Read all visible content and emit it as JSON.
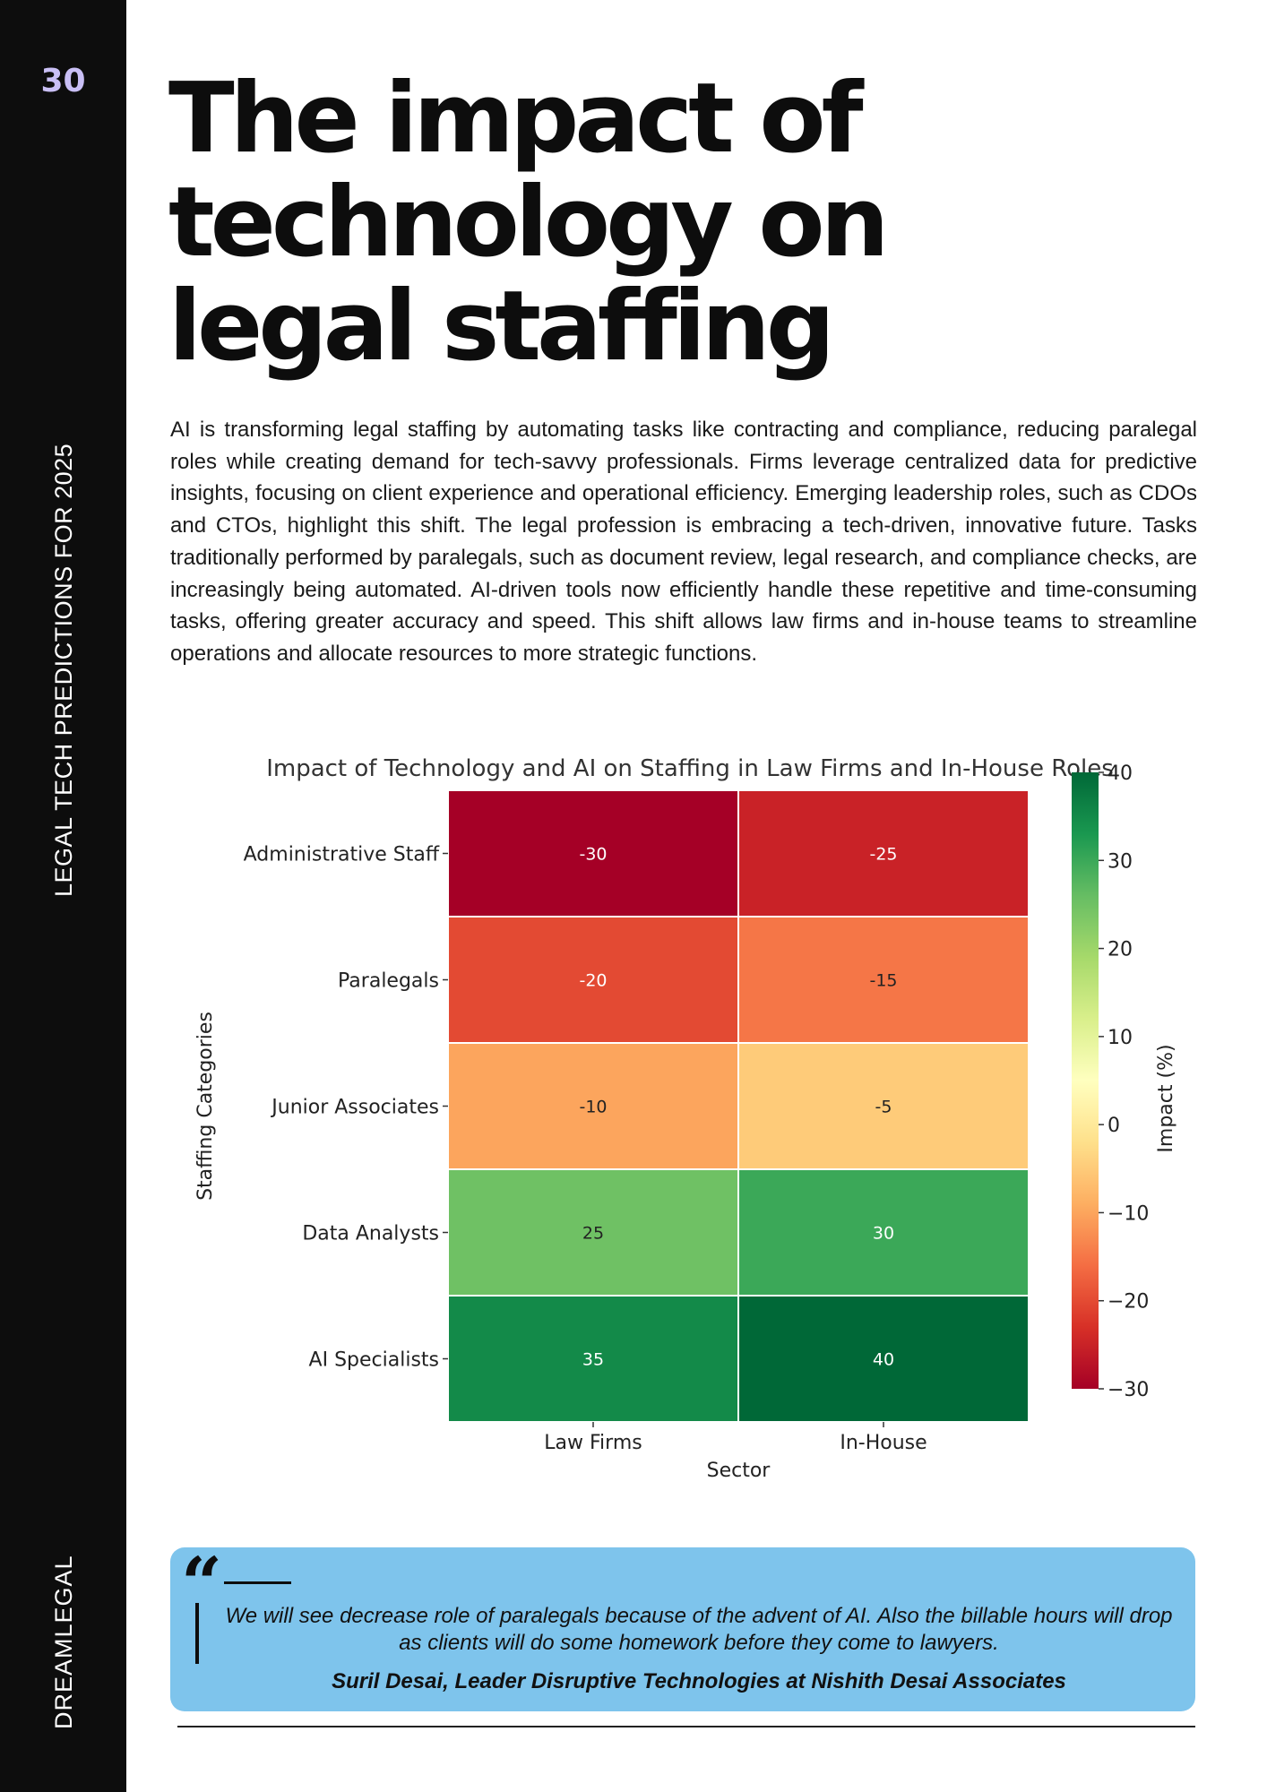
{
  "sidebar": {
    "page_number": "30",
    "publication": "LEGAL TECH PREDICTIONS FOR 2025",
    "brand": "DREAMLEGAL"
  },
  "title_lines": [
    "The impact of",
    "technology on",
    "legal staffing"
  ],
  "body_text": "AI is transforming legal staffing by automating tasks like contracting and compliance, reducing paralegal roles while creating demand for tech-savvy professionals. Firms leverage centralized data for predictive insights, focusing on client experience and operational efficiency. Emerging leadership roles, such as CDOs and CTOs, highlight this shift. The legal profession is embracing a tech-driven, innovative future. Tasks traditionally performed by paralegals, such as document review, legal research, and compliance checks, are increasingly being automated. AI-driven tools now efficiently handle these repetitive and time-consuming tasks, offering greater accuracy and speed. This shift allows law firms and in-house teams to streamline operations and allocate resources to more strategic functions.",
  "chart_data": {
    "type": "heatmap",
    "title": "Impact of Technology and AI on Staffing in Law Firms and In-House Roles",
    "xlabel": "Sector",
    "ylabel": "Staffing Categories",
    "x_categories": [
      "Law Firms",
      "In-House"
    ],
    "y_categories": [
      "Administrative Staff",
      "Paralegals",
      "Junior Associates",
      "Data Analysts",
      "AI Specialists"
    ],
    "values": [
      [
        -30,
        -25
      ],
      [
        -20,
        -15
      ],
      [
        -10,
        -5
      ],
      [
        25,
        30
      ],
      [
        35,
        40
      ]
    ],
    "colorbar": {
      "label": "Impact (%)",
      "range": [
        -30,
        40
      ],
      "ticks": [
        40,
        30,
        20,
        10,
        0,
        -10,
        -20,
        -30
      ],
      "tick_labels": [
        "40",
        "30",
        "20",
        "10",
        "0",
        "−10",
        "−20",
        "−30"
      ],
      "colormap": "RdYlGn"
    }
  },
  "quote": {
    "mark": "“",
    "text": "We will see decrease role of paralegals because of the advent of AI. Also the billable hours will drop as clients will do some homework before they come to lawyers.",
    "author": "Suril Desai, Leader Disruptive Technologies at Nishith Desai Associates",
    "box_color": "#7ec4ec"
  }
}
